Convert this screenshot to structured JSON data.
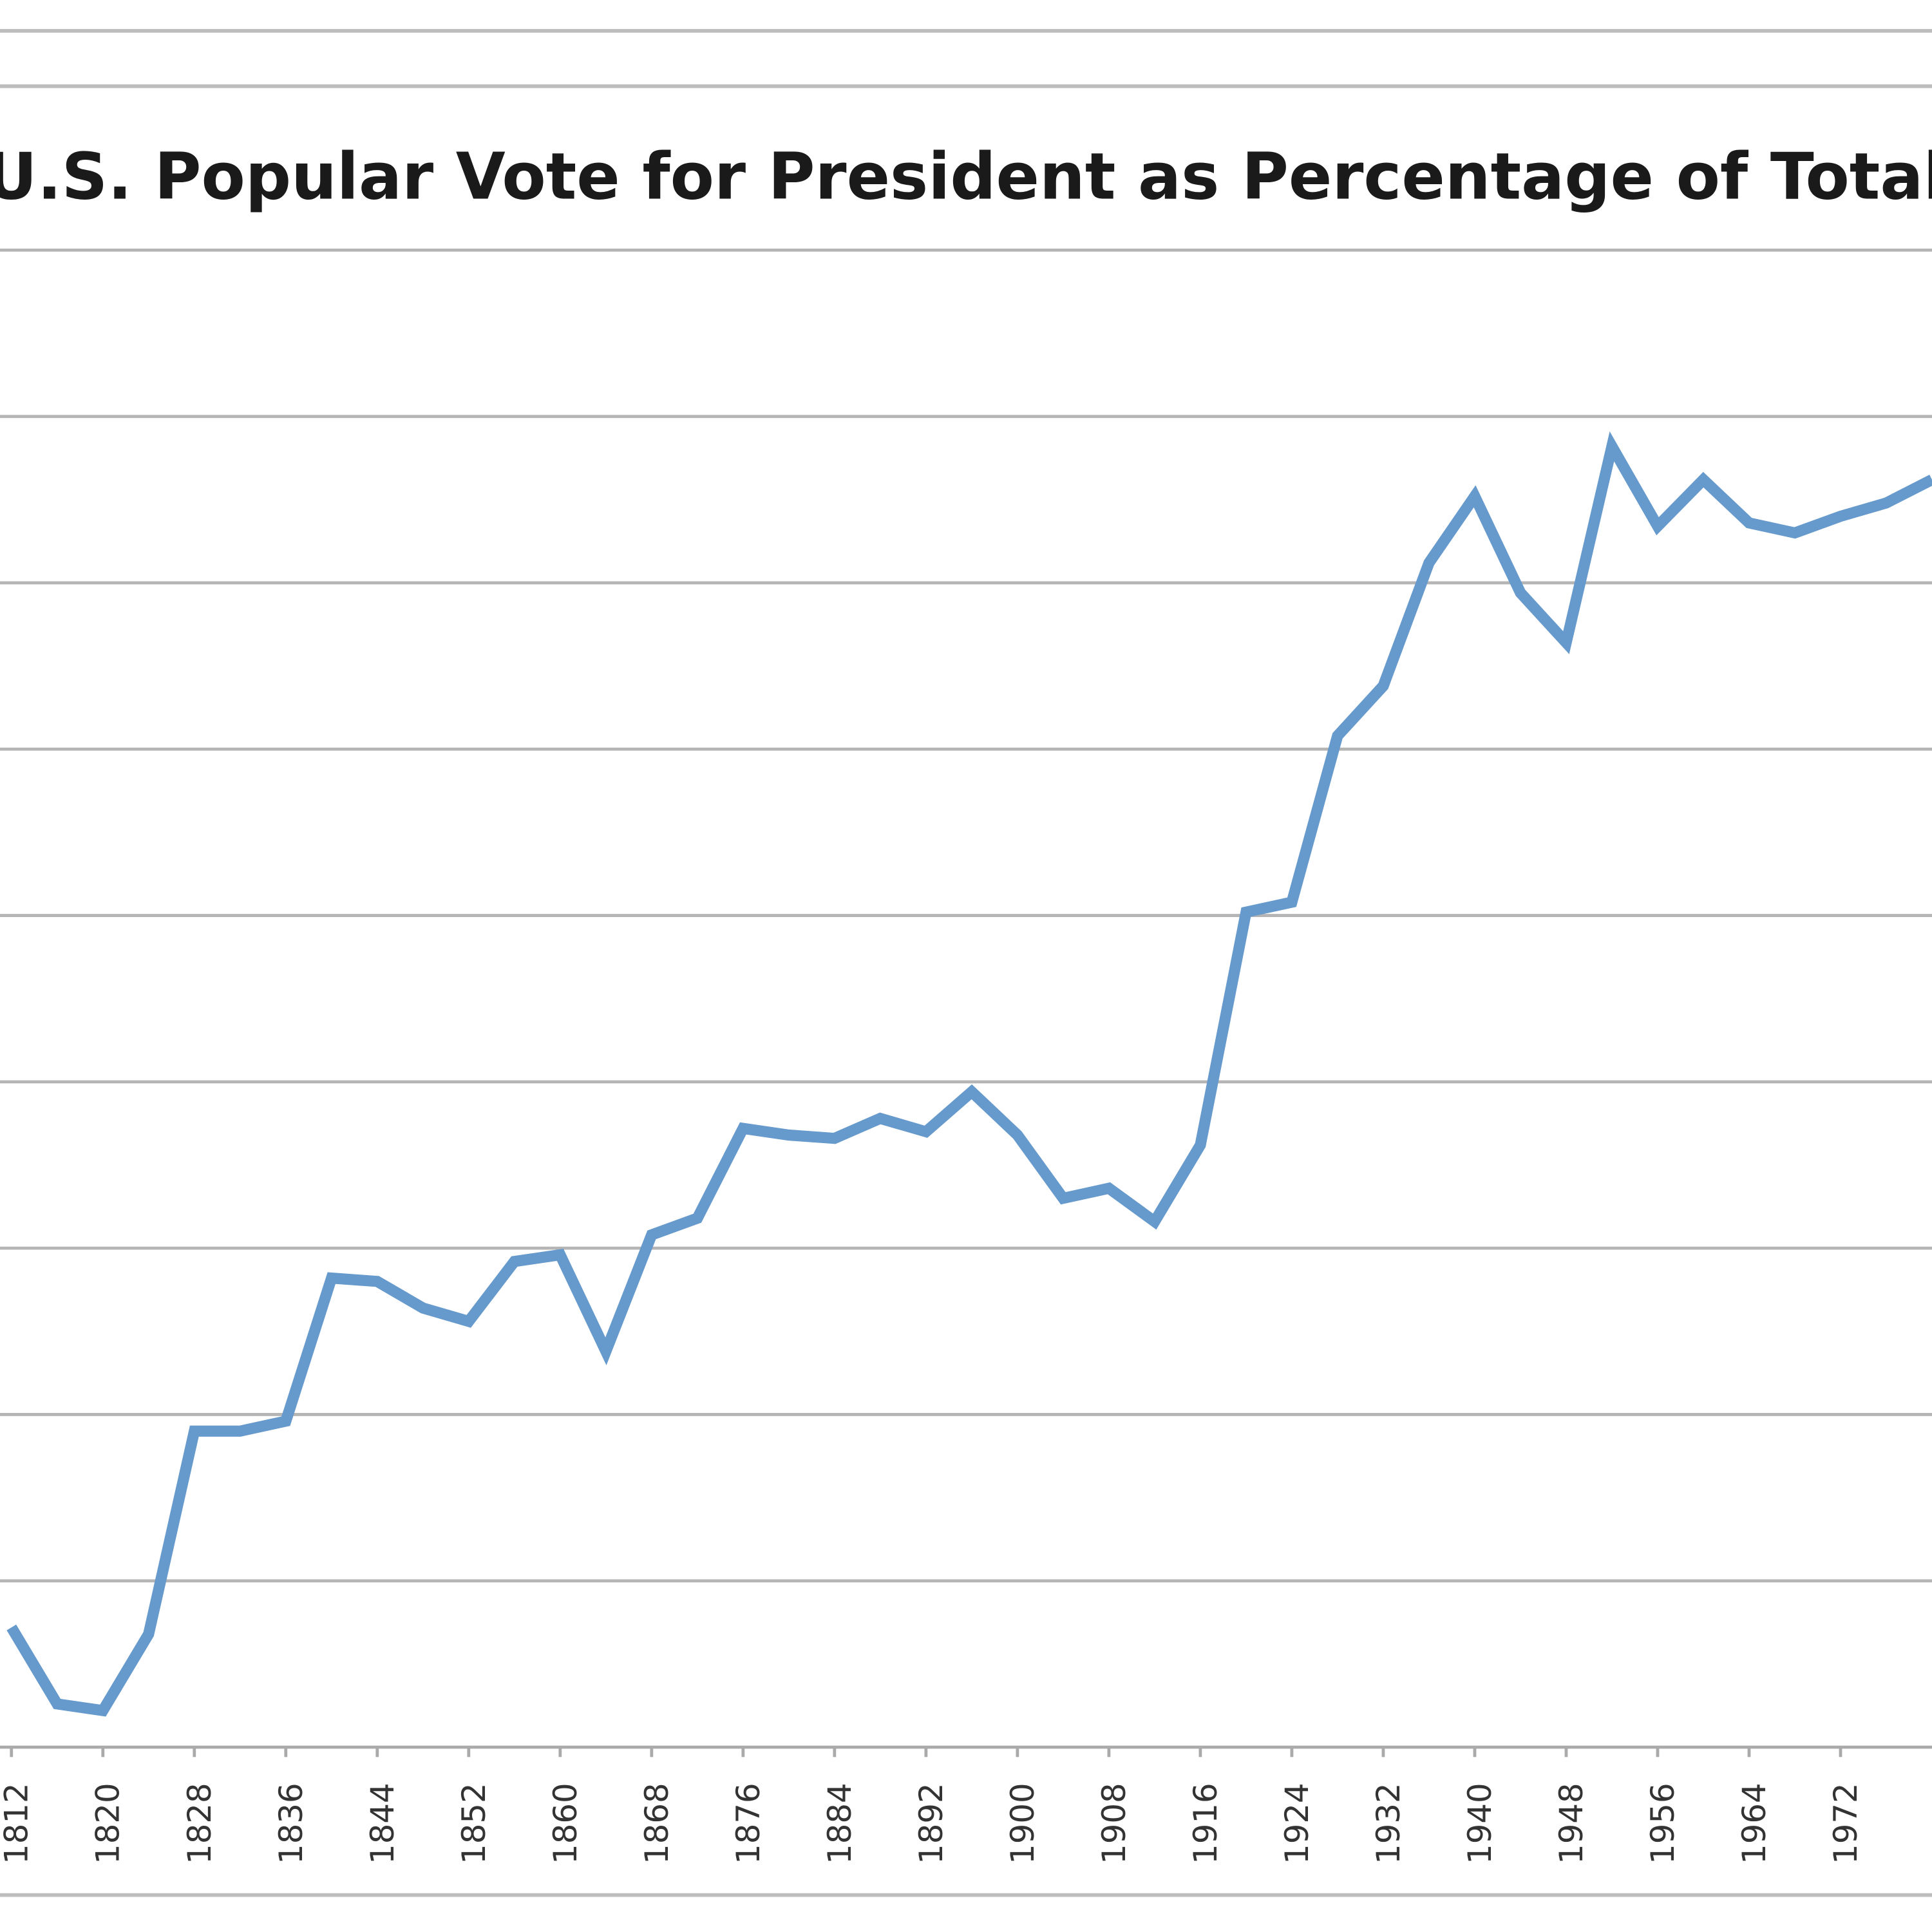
{
  "chart_data": {
    "type": "line",
    "title": "U.S. Popular Vote for President as Percentage of Total Pop",
    "x": [
      1812,
      1816,
      1820,
      1824,
      1828,
      1832,
      1836,
      1840,
      1844,
      1848,
      1852,
      1856,
      1860,
      1864,
      1868,
      1872,
      1876,
      1880,
      1884,
      1888,
      1892,
      1896,
      1900,
      1904,
      1908,
      1912,
      1916,
      1920,
      1924,
      1928,
      1932,
      1936,
      1940,
      1944,
      1948,
      1952,
      1956,
      1960,
      1964,
      1968,
      1972,
      1976,
      1980
    ],
    "series": [
      {
        "color": "#6699cc",
        "values": [
          3.6,
          1.3,
          1.1,
          3.4,
          9.5,
          9.5,
          9.8,
          14.1,
          14.0,
          13.2,
          12.8,
          14.6,
          14.8,
          11.9,
          15.4,
          15.9,
          18.6,
          18.4,
          18.3,
          18.9,
          18.5,
          19.7,
          18.4,
          16.5,
          16.8,
          15.8,
          18.1,
          25.1,
          25.4,
          30.4,
          31.9,
          35.6,
          37.6,
          34.7,
          33.2,
          39.1,
          36.7,
          38.1,
          36.8,
          36.5,
          37.0,
          37.4,
          38.1
        ]
      }
    ],
    "xlim": [
      1811,
      1980
    ],
    "xticks": [
      1812,
      1820,
      1828,
      1836,
      1844,
      1852,
      1860,
      1868,
      1876,
      1884,
      1892,
      1900,
      1908,
      1916,
      1924,
      1932,
      1940,
      1948,
      1956,
      1964,
      1972
    ],
    "ylim": [
      0,
      45
    ],
    "yticks": [
      0,
      5,
      10,
      15,
      20,
      25,
      30,
      35,
      40,
      45
    ],
    "grid": true
  }
}
